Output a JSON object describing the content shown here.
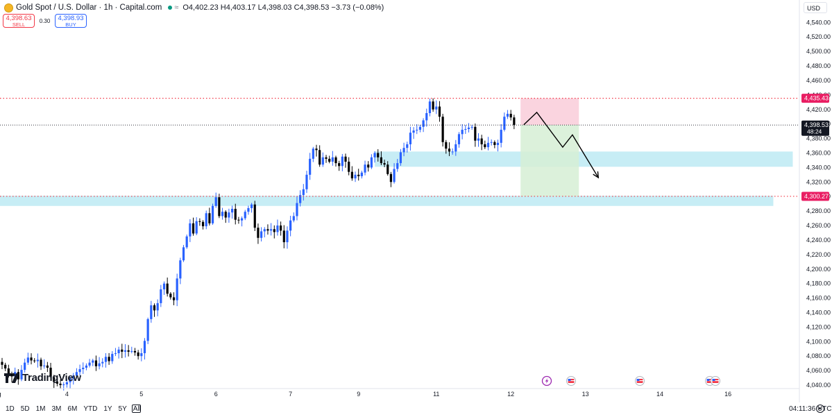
{
  "legend": {
    "title": "Gold Spot / U.S. Dollar · 1h · Capital.com",
    "open": "O4,402.23",
    "high": "H4,403.17",
    "low": "L4,398.03",
    "close": "C4,398.53",
    "change": "−3.73 (−0.08%)"
  },
  "trade": {
    "sell_price": "4,398.63",
    "sell_label": "SELL",
    "spread": "0.30",
    "buy_price": "4,398.93",
    "buy_label": "BUY"
  },
  "currency": "USD",
  "brand": "TradingView",
  "ranges": [
    "1D",
    "5D",
    "1M",
    "3M",
    "6M",
    "YTD",
    "1Y",
    "5Y",
    "All"
  ],
  "clock": "04:11:36 UTC",
  "colors": {
    "up": "#2962ff",
    "down": "#000000",
    "resistance": "#f23645",
    "zone": "#b9e6f0",
    "tp": "#d6efd5",
    "sl": "#fad2dd"
  },
  "chart_data": {
    "type": "candlestick",
    "ylim": [
      4030,
      4550
    ],
    "y_ticks": [
      "4,040.00",
      "4,060.00",
      "4,080.00",
      "4,100.00",
      "4,120.00",
      "4,140.00",
      "4,160.00",
      "4,180.00",
      "4,200.00",
      "4,220.00",
      "4,240.00",
      "4,260.00",
      "4,280.00",
      "4,300.00",
      "4,320.00",
      "4,340.00",
      "4,360.00",
      "4,380.00",
      "4,400.00",
      "4,420.00",
      "4,440.00",
      "4,460.00",
      "4,480.00",
      "4,500.00",
      "4,520.00",
      "4,540.00"
    ],
    "x_ticks": [
      {
        "label": "Aug",
        "bar": -2
      },
      {
        "label": "4",
        "bar": 20
      },
      {
        "label": "5",
        "bar": 43
      },
      {
        "label": "6",
        "bar": 66
      },
      {
        "label": "7",
        "bar": 89
      },
      {
        "label": "9",
        "bar": 110
      },
      {
        "label": "11",
        "bar": 134
      },
      {
        "label": "12",
        "bar": 157
      },
      {
        "label": "13",
        "bar": 180
      },
      {
        "label": "14",
        "bar": 203
      },
      {
        "label": "16",
        "bar": 224
      }
    ],
    "closes": [
      4068,
      4063,
      4056,
      4052,
      4058,
      4048,
      4061,
      4071,
      4078,
      4074,
      4073,
      4075,
      4066,
      4067,
      4064,
      4051,
      4045,
      4042,
      4040,
      4041,
      4044,
      4049,
      4053,
      4058,
      4062,
      4064,
      4067,
      4071,
      4074,
      4066,
      4070,
      4072,
      4079,
      4073,
      4083,
      4084,
      4089,
      4086,
      4088,
      4086,
      4087,
      4085,
      4080,
      4084,
      4101,
      4131,
      4150,
      4143,
      4153,
      4172,
      4180,
      4166,
      4161,
      4157,
      4187,
      4212,
      4230,
      4245,
      4263,
      4249,
      4266,
      4265,
      4259,
      4277,
      4263,
      4287,
      4299,
      4273,
      4279,
      4271,
      4278,
      4283,
      4268,
      4267,
      4270,
      4279,
      4284,
      4289,
      4257,
      4243,
      4252,
      4255,
      4253,
      4255,
      4251,
      4260,
      4253,
      4237,
      4253,
      4267,
      4273,
      4291,
      4302,
      4310,
      4330,
      4352,
      4366,
      4364,
      4344,
      4354,
      4352,
      4348,
      4354,
      4346,
      4342,
      4355,
      4348,
      4334,
      4325,
      4330,
      4328,
      4333,
      4344,
      4340,
      4354,
      4360,
      4354,
      4346,
      4344,
      4331,
      4320,
      4338,
      4346,
      4361,
      4367,
      4372,
      4388,
      4391,
      4392,
      4396,
      4405,
      4415,
      4431,
      4420,
      4424,
      4410,
      4375,
      4366,
      4362,
      4362,
      4372,
      4386,
      4392,
      4393,
      4395,
      4396,
      4377,
      4380,
      4372,
      4368,
      4374,
      4375,
      4371,
      4374,
      4392,
      4410,
      4414,
      4409,
      4398.53
    ],
    "resistance": 4435.43,
    "support": 4300.27,
    "resistance_label": "4,435.43",
    "support_label": "4,300.27",
    "last_price": 4398.53,
    "last_label": "4,398.53",
    "countdown": "48:24",
    "zones": [
      {
        "name": "lower-demand-zone",
        "from_bar": -6,
        "to_bar": 238,
        "y1": 4301,
        "y2": 4287
      },
      {
        "name": "upper-supply-zone",
        "from_bar": 115,
        "to_bar": 244,
        "y1": 4362,
        "y2": 4341
      }
    ],
    "short_position": {
      "from_bar": 160,
      "to_bar": 178,
      "entry": 4398.53,
      "stop": 4435.43,
      "target": 4300.27
    },
    "projection": [
      [
        161,
        4399
      ],
      [
        165,
        4416
      ],
      [
        173,
        4368
      ],
      [
        176,
        4385
      ],
      [
        184,
        4326
      ]
    ]
  }
}
